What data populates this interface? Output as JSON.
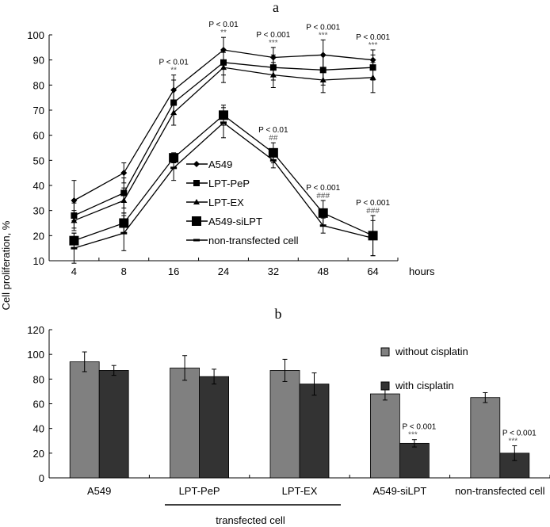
{
  "y_axis_label": "Cell proliferation, %",
  "chart_data": [
    {
      "type": "line",
      "title": "a",
      "xlabel": "hours",
      "ylabel": "Cell proliferation, %",
      "categories": [
        "4",
        "8",
        "16",
        "24",
        "32",
        "48",
        "64"
      ],
      "ylim": [
        10,
        100
      ],
      "yticks": [
        10,
        20,
        30,
        40,
        50,
        60,
        70,
        80,
        90,
        100
      ],
      "grid": false,
      "legend_position": "center",
      "series": [
        {
          "name": "A549",
          "marker": "diamond",
          "values": [
            34,
            45,
            78,
            94,
            91,
            92,
            90
          ],
          "errors": [
            8,
            4,
            6,
            5,
            4,
            6,
            4
          ]
        },
        {
          "name": "LPT-PeP",
          "marker": "square",
          "values": [
            28,
            37,
            73,
            89,
            87,
            86,
            87
          ],
          "errors": [
            5,
            6,
            9,
            5,
            5,
            6,
            5
          ]
        },
        {
          "name": "LPT-EX",
          "marker": "triangle",
          "values": [
            26,
            34,
            69,
            87,
            84,
            82,
            83
          ],
          "errors": [
            4,
            5,
            5,
            6,
            5,
            5,
            6
          ]
        },
        {
          "name": "A549-siLPT",
          "marker": "big-square",
          "values": [
            18,
            25,
            51,
            68,
            53,
            29,
            20
          ],
          "errors": [
            3,
            4,
            2,
            4,
            4,
            5,
            8
          ]
        },
        {
          "name": "non-transfected cell",
          "marker": "dash",
          "values": [
            15,
            21,
            47,
            65,
            50,
            24,
            19
          ],
          "errors": [
            6,
            7,
            5,
            6,
            3,
            3,
            7
          ]
        }
      ],
      "annotations": [
        {
          "category": "16",
          "p": "P < 0.01",
          "mark": "**",
          "over": "A549"
        },
        {
          "category": "24",
          "p": "P < 0.01",
          "mark": "**",
          "over": "A549"
        },
        {
          "category": "32",
          "p": "P < 0.001",
          "mark": "***",
          "over": "A549"
        },
        {
          "category": "48",
          "p": "P < 0.001",
          "mark": "***",
          "over": "A549"
        },
        {
          "category": "64",
          "p": "P < 0.001",
          "mark": "***",
          "over": "A549"
        },
        {
          "category": "32",
          "p": "P < 0.01",
          "mark": "##",
          "over": "A549-siLPT"
        },
        {
          "category": "48",
          "p": "P < 0.001",
          "mark": "###",
          "over": "A549-siLPT"
        },
        {
          "category": "64",
          "p": "P < 0.001",
          "mark": "###",
          "over": "A549-siLPT"
        }
      ]
    },
    {
      "type": "bar",
      "title": "b",
      "categories": [
        "A549",
        "LPT-PeP",
        "LPT-EX",
        "A549-siLPT",
        "non-transfected cell"
      ],
      "group_label": "transfected cell",
      "ylim": [
        0,
        120
      ],
      "yticks": [
        0,
        20,
        40,
        60,
        80,
        100,
        120
      ],
      "grid": false,
      "legend_position": "top-right",
      "series": [
        {
          "name": "without cisplatin",
          "color": "#808080",
          "values": [
            94,
            89,
            87,
            68,
            65
          ],
          "errors": [
            8,
            10,
            9,
            5,
            4
          ]
        },
        {
          "name": "with cisplatin",
          "color": "#333333",
          "values": [
            87,
            82,
            76,
            28,
            20
          ],
          "errors": [
            4,
            6,
            9,
            3,
            6
          ]
        }
      ],
      "annotations": [
        {
          "category": "A549-siLPT",
          "p": "P < 0.001",
          "mark": "***"
        },
        {
          "category": "non-transfected cell",
          "p": "P < 0.001",
          "mark": "***"
        }
      ]
    }
  ]
}
